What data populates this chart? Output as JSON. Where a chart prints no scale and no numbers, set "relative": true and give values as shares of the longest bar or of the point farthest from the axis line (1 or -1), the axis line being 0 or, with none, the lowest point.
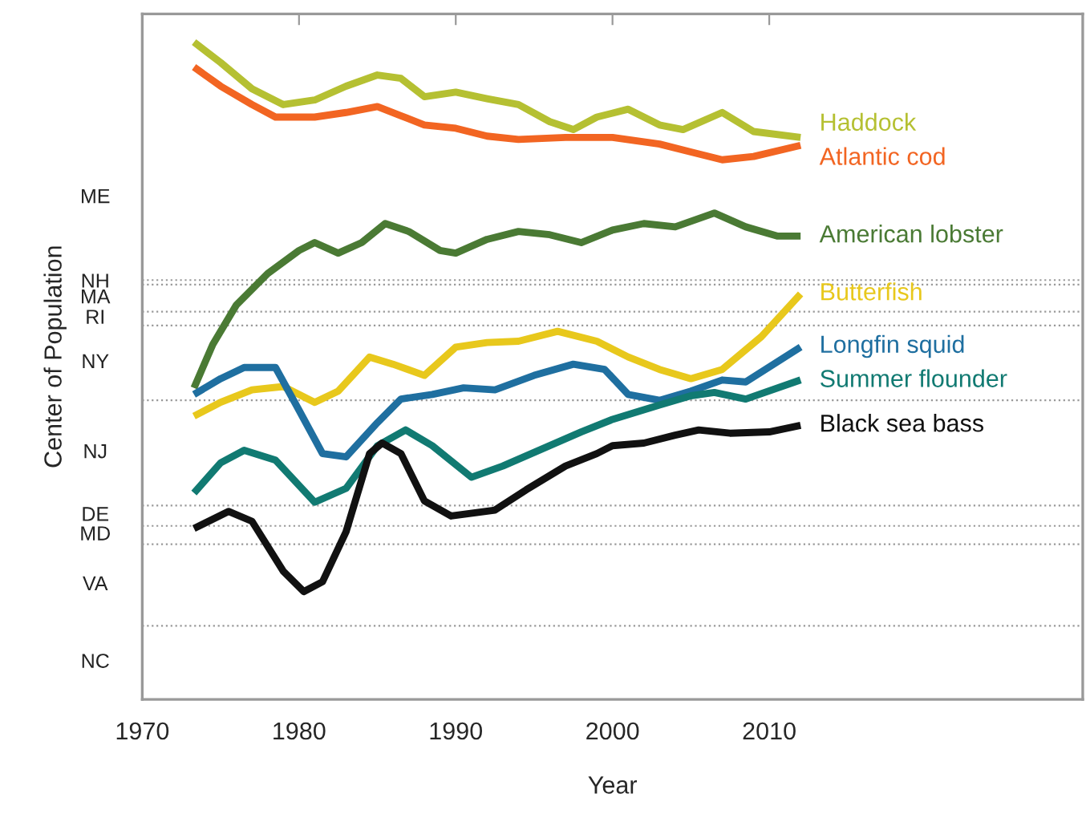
{
  "chart_data": {
    "type": "line",
    "xlabel": "Year",
    "ylabel": "Center of Population",
    "relative": true,
    "xlim": [
      1970,
      2030
    ],
    "xticks": [
      1970,
      1980,
      1990,
      2000,
      2010
    ],
    "annotations": [
      "ME",
      "NH",
      "MA",
      "RI",
      "NY",
      "NJ",
      "DE",
      "MD",
      "VA",
      "NC"
    ],
    "ref_lines": [
      {
        "axis": "y",
        "value": 0.638,
        "color": "#999999",
        "line_style": "dotted"
      },
      {
        "axis": "y",
        "value": 0.631,
        "color": "#999999",
        "line_style": "dotted"
      },
      {
        "axis": "y",
        "value": 0.59,
        "color": "#999999",
        "line_style": "dotted"
      },
      {
        "axis": "y",
        "value": 0.569,
        "color": "#999999",
        "line_style": "dotted"
      },
      {
        "axis": "y",
        "value": 0.455,
        "color": "#999999",
        "line_style": "dotted"
      },
      {
        "axis": "y",
        "value": 0.295,
        "color": "#999999",
        "line_style": "dotted"
      },
      {
        "axis": "y",
        "value": 0.264,
        "color": "#999999",
        "line_style": "dotted"
      },
      {
        "axis": "y",
        "value": 0.236,
        "color": "#999999",
        "line_style": "dotted"
      },
      {
        "axis": "y",
        "value": 0.112,
        "color": "#999999",
        "line_style": "dotted"
      }
    ],
    "grid": false,
    "marker": "none",
    "line_style": "solid",
    "series": [
      {
        "name": "Haddock",
        "color": "#b5c032",
        "x": [
          1973.3,
          1975,
          1977,
          1979,
          1981,
          1983,
          1985,
          1986.5,
          1988,
          1990,
          1992,
          1994,
          1996,
          1997.5,
          1999,
          2001,
          2003,
          2004.5,
          2007,
          2009,
          2012
        ],
        "values": [
          1.0,
          0.969,
          0.929,
          0.905,
          0.912,
          0.933,
          0.95,
          0.945,
          0.917,
          0.924,
          0.914,
          0.905,
          0.879,
          0.867,
          0.886,
          0.898,
          0.874,
          0.867,
          0.893,
          0.864,
          0.855
        ]
      },
      {
        "name": "Atlantic cod",
        "color": "#f26522",
        "x": [
          1973.3,
          1975,
          1977,
          1978.5,
          1981,
          1983,
          1985,
          1986.5,
          1988,
          1990,
          1992,
          1994,
          1997,
          2000,
          2003,
          2005,
          2007,
          2009,
          2012
        ],
        "values": [
          0.962,
          0.933,
          0.905,
          0.886,
          0.886,
          0.893,
          0.902,
          0.888,
          0.874,
          0.869,
          0.857,
          0.852,
          0.855,
          0.855,
          0.845,
          0.833,
          0.821,
          0.826,
          0.843
        ]
      },
      {
        "name": "American lobster",
        "color": "#4a7a34",
        "x": [
          1973.3,
          1974.5,
          1976,
          1978,
          1980,
          1981,
          1982.5,
          1984,
          1985.5,
          1987,
          1989,
          1990,
          1992,
          1994,
          1996,
          1998,
          2000,
          2002,
          2004,
          2006.5,
          2008.5,
          2010.5,
          2012
        ],
        "values": [
          0.474,
          0.54,
          0.6,
          0.648,
          0.683,
          0.695,
          0.679,
          0.695,
          0.724,
          0.712,
          0.683,
          0.679,
          0.7,
          0.712,
          0.707,
          0.695,
          0.714,
          0.724,
          0.719,
          0.74,
          0.719,
          0.705,
          0.705
        ]
      },
      {
        "name": "Butterfish",
        "color": "#e8c81c",
        "x": [
          1973.3,
          1975,
          1977,
          1979,
          1981,
          1982.5,
          1984.5,
          1986,
          1988,
          1990,
          1992,
          1994,
          1996.5,
          1999,
          2001,
          2003,
          2005,
          2007,
          2009.5,
          2012
        ],
        "values": [
          0.431,
          0.452,
          0.471,
          0.476,
          0.452,
          0.469,
          0.521,
          0.51,
          0.493,
          0.536,
          0.543,
          0.545,
          0.56,
          0.545,
          0.521,
          0.502,
          0.488,
          0.502,
          0.552,
          0.617
        ]
      },
      {
        "name": "Longfin squid",
        "color": "#1f6fa0",
        "x": [
          1973.3,
          1975,
          1976.5,
          1978.5,
          1980,
          1981.5,
          1983,
          1985,
          1986.5,
          1988.5,
          1990.5,
          1992.5,
          1995,
          1997.5,
          1999.5,
          2001,
          2003,
          2005,
          2007,
          2008.5,
          2012
        ],
        "values": [
          0.464,
          0.488,
          0.505,
          0.505,
          0.44,
          0.374,
          0.369,
          0.421,
          0.457,
          0.464,
          0.474,
          0.471,
          0.493,
          0.51,
          0.502,
          0.464,
          0.455,
          0.469,
          0.486,
          0.483,
          0.536
        ]
      },
      {
        "name": "Summer flounder",
        "color": "#117a72",
        "x": [
          1973.3,
          1975,
          1976.5,
          1978.5,
          1981,
          1983,
          1985,
          1986.8,
          1988.5,
          1991,
          1993,
          1995.5,
          1998,
          2000,
          2003,
          2005,
          2006.5,
          2008.5,
          2012
        ],
        "values": [
          0.314,
          0.36,
          0.379,
          0.364,
          0.3,
          0.321,
          0.386,
          0.41,
          0.386,
          0.338,
          0.355,
          0.381,
          0.407,
          0.426,
          0.448,
          0.462,
          0.467,
          0.457,
          0.486
        ]
      },
      {
        "name": "Black sea bass",
        "color": "#111111",
        "x": [
          1973.3,
          1975.5,
          1977,
          1979,
          1980.3,
          1981.5,
          1983,
          1984.5,
          1985.3,
          1986.5,
          1988,
          1989.7,
          1992.5,
          1994.5,
          1997,
          1999,
          2000,
          2002,
          2004,
          2005.5,
          2007.5,
          2010,
          2012
        ],
        "values": [
          0.26,
          0.286,
          0.271,
          0.195,
          0.164,
          0.179,
          0.255,
          0.374,
          0.39,
          0.374,
          0.302,
          0.279,
          0.288,
          0.319,
          0.355,
          0.374,
          0.386,
          0.39,
          0.402,
          0.41,
          0.405,
          0.407,
          0.417
        ]
      }
    ]
  }
}
